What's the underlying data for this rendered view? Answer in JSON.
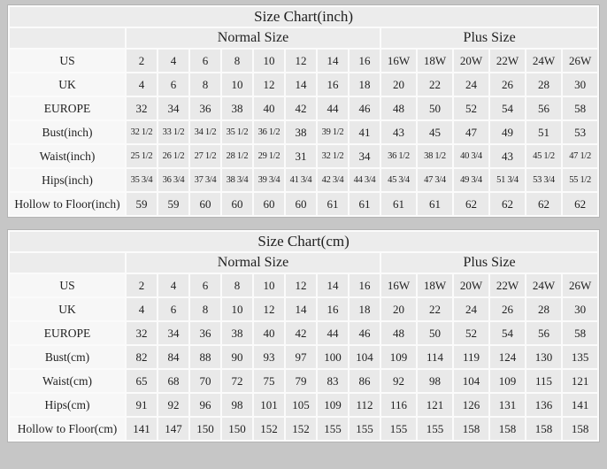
{
  "colors": {
    "page_background": "#c6c6c6",
    "header_cell": "#ececec",
    "label_cell": "#f7f7f7",
    "value_cell": "#e9e9e9",
    "grid_line": "#fbfbfb",
    "text": "#1f1f1f"
  },
  "chart_data": [
    {
      "type": "table",
      "title": "Size Chart(inch)",
      "group_headers": [
        {
          "label": "Normal Size",
          "span": 8
        },
        {
          "label": "Plus Size",
          "span": 6
        }
      ],
      "rows": [
        {
          "label": "US",
          "values": [
            "2",
            "4",
            "6",
            "8",
            "10",
            "12",
            "14",
            "16",
            "16W",
            "18W",
            "20W",
            "22W",
            "24W",
            "26W"
          ]
        },
        {
          "label": "UK",
          "values": [
            "4",
            "6",
            "8",
            "10",
            "12",
            "14",
            "16",
            "18",
            "20",
            "22",
            "24",
            "26",
            "28",
            "30"
          ]
        },
        {
          "label": "EUROPE",
          "values": [
            "32",
            "34",
            "36",
            "38",
            "40",
            "42",
            "44",
            "46",
            "48",
            "50",
            "52",
            "54",
            "56",
            "58"
          ]
        },
        {
          "label": "Bust(inch)",
          "values": [
            "32 1/2",
            "33 1/2",
            "34 1/2",
            "35 1/2",
            "36 1/2",
            "38",
            "39 1/2",
            "41",
            "43",
            "45",
            "47",
            "49",
            "51",
            "53"
          ]
        },
        {
          "label": "Waist(inch)",
          "values": [
            "25 1/2",
            "26 1/2",
            "27 1/2",
            "28 1/2",
            "29 1/2",
            "31",
            "32 1/2",
            "34",
            "36 1/2",
            "38 1/2",
            "40 3/4",
            "43",
            "45 1/2",
            "47 1/2"
          ]
        },
        {
          "label": "Hips(inch)",
          "values": [
            "35 3/4",
            "36 3/4",
            "37 3/4",
            "38 3/4",
            "39 3/4",
            "41 3/4",
            "42 3/4",
            "44 3/4",
            "45 3/4",
            "47 3/4",
            "49 3/4",
            "51 3/4",
            "53 3/4",
            "55 1/2"
          ]
        },
        {
          "label": "Hollow to Floor(inch)",
          "values": [
            "59",
            "59",
            "60",
            "60",
            "60",
            "60",
            "61",
            "61",
            "61",
            "61",
            "62",
            "62",
            "62",
            "62"
          ]
        }
      ]
    },
    {
      "type": "table",
      "title": "Size Chart(cm)",
      "group_headers": [
        {
          "label": "Normal Size",
          "span": 8
        },
        {
          "label": "Plus Size",
          "span": 6
        }
      ],
      "rows": [
        {
          "label": "US",
          "values": [
            "2",
            "4",
            "6",
            "8",
            "10",
            "12",
            "14",
            "16",
            "16W",
            "18W",
            "20W",
            "22W",
            "24W",
            "26W"
          ]
        },
        {
          "label": "UK",
          "values": [
            "4",
            "6",
            "8",
            "10",
            "12",
            "14",
            "16",
            "18",
            "20",
            "22",
            "24",
            "26",
            "28",
            "30"
          ]
        },
        {
          "label": "EUROPE",
          "values": [
            "32",
            "34",
            "36",
            "38",
            "40",
            "42",
            "44",
            "46",
            "48",
            "50",
            "52",
            "54",
            "56",
            "58"
          ]
        },
        {
          "label": "Bust(cm)",
          "values": [
            "82",
            "84",
            "88",
            "90",
            "93",
            "97",
            "100",
            "104",
            "109",
            "114",
            "119",
            "124",
            "130",
            "135"
          ]
        },
        {
          "label": "Waist(cm)",
          "values": [
            "65",
            "68",
            "70",
            "72",
            "75",
            "79",
            "83",
            "86",
            "92",
            "98",
            "104",
            "109",
            "115",
            "121"
          ]
        },
        {
          "label": "Hips(cm)",
          "values": [
            "91",
            "92",
            "96",
            "98",
            "101",
            "105",
            "109",
            "112",
            "116",
            "121",
            "126",
            "131",
            "136",
            "141"
          ]
        },
        {
          "label": "Hollow to Floor(cm)",
          "values": [
            "141",
            "147",
            "150",
            "150",
            "152",
            "152",
            "155",
            "155",
            "155",
            "155",
            "158",
            "158",
            "158",
            "158"
          ]
        }
      ]
    }
  ]
}
